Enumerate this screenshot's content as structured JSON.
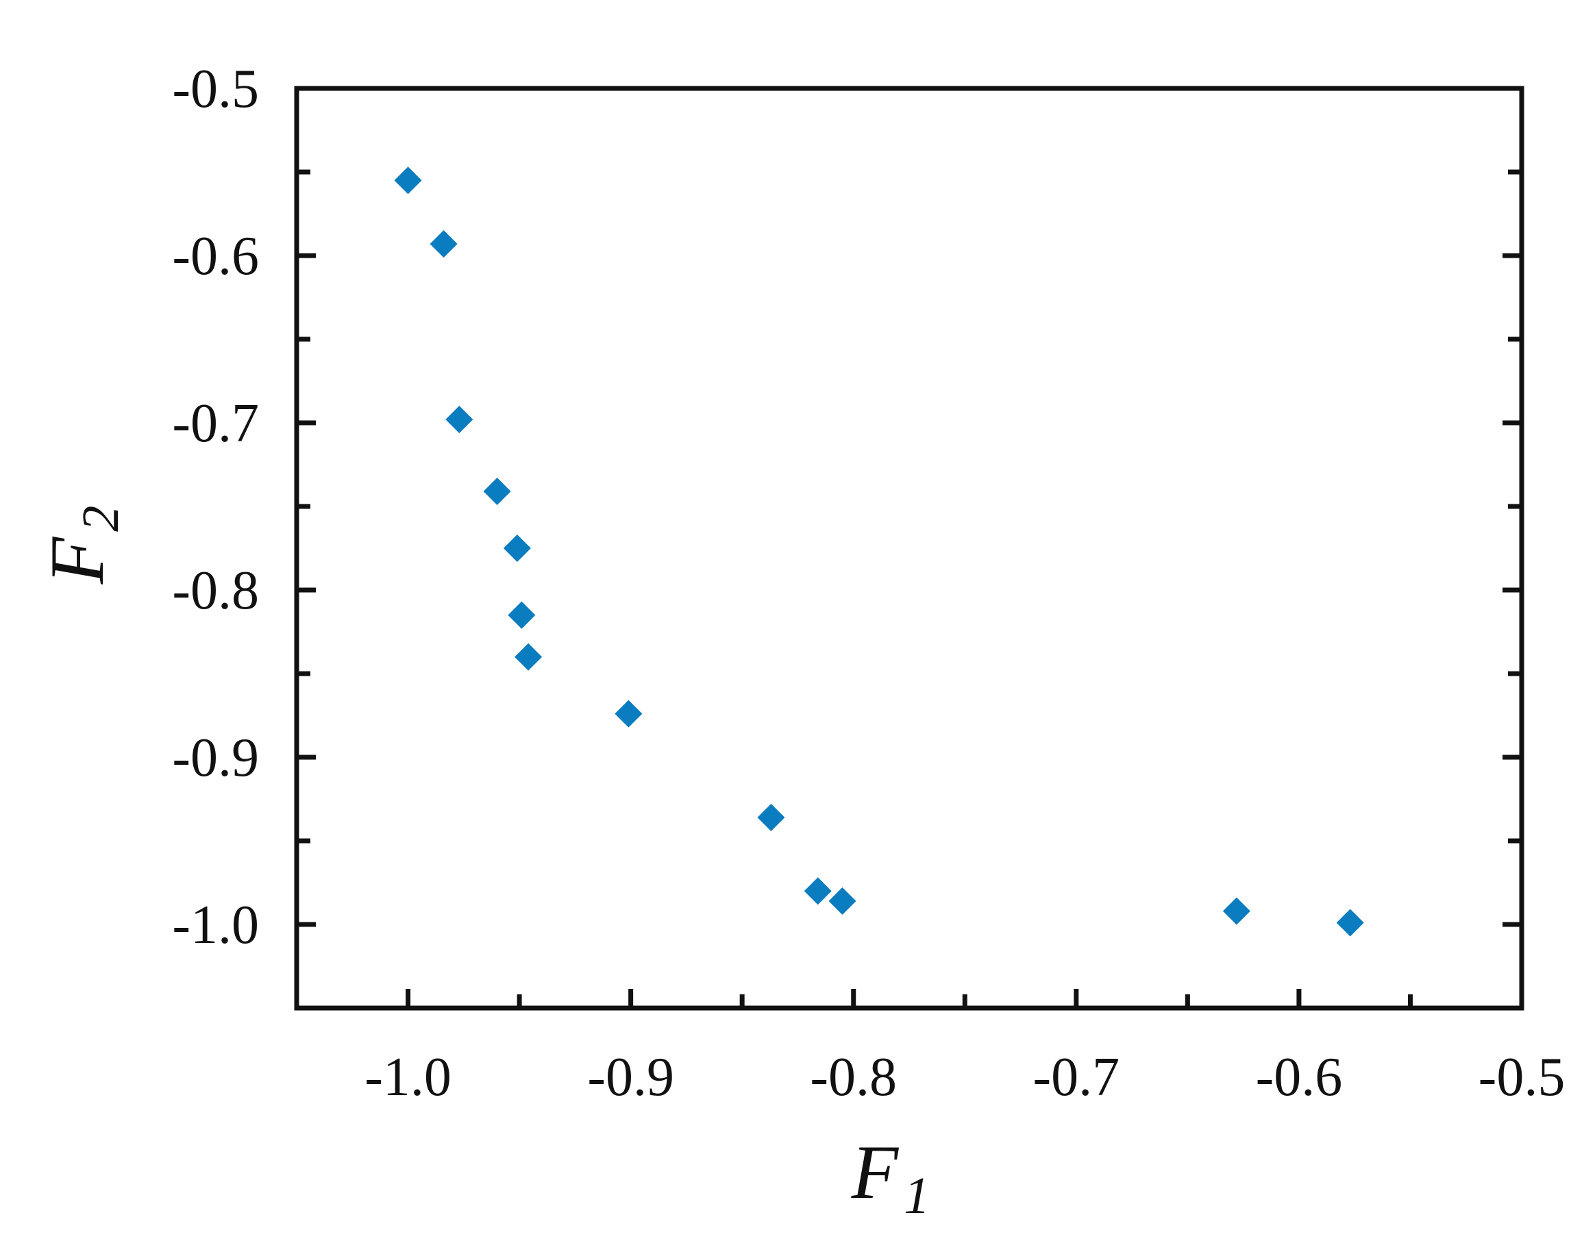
{
  "chart_data": {
    "type": "scatter",
    "title": "",
    "xlabel": "F",
    "xlabel_sub": "1",
    "ylabel": "F",
    "ylabel_sub": "2",
    "xlim": [
      -1.05,
      -0.5
    ],
    "ylim": [
      -1.05,
      -0.5
    ],
    "x_ticks": [
      -1.0,
      -0.9,
      -0.8,
      -0.7,
      -0.6,
      -0.5
    ],
    "x_tick_labels": [
      "-1.0",
      "-0.9",
      "-0.8",
      "-0.7",
      "-0.6",
      "-0.5"
    ],
    "x_minor_ticks": [
      -0.95,
      -0.85,
      -0.75,
      -0.65,
      -0.55
    ],
    "y_ticks": [
      -1.0,
      -0.9,
      -0.8,
      -0.7,
      -0.6,
      -0.5
    ],
    "y_tick_labels": [
      "-1.0",
      "-0.9",
      "-0.8",
      "-0.7",
      "-0.6",
      "-0.5"
    ],
    "y_minor_ticks": [
      -0.95,
      -0.85,
      -0.75,
      -0.65,
      -0.55
    ],
    "grid": false,
    "legend": "none",
    "marker": "diamond",
    "marker_color": "#0a7cc0",
    "series": [
      {
        "x": [
          -1.0,
          -0.984,
          -0.977,
          -0.96,
          -0.951,
          -0.949,
          -0.946,
          -0.901,
          -0.837,
          -0.816,
          -0.805,
          -0.628,
          -0.577
        ],
        "y": [
          -0.555,
          -0.593,
          -0.698,
          -0.741,
          -0.775,
          -0.815,
          -0.84,
          -0.874,
          -0.936,
          -0.98,
          -0.986,
          -0.992,
          -0.999
        ]
      }
    ]
  }
}
